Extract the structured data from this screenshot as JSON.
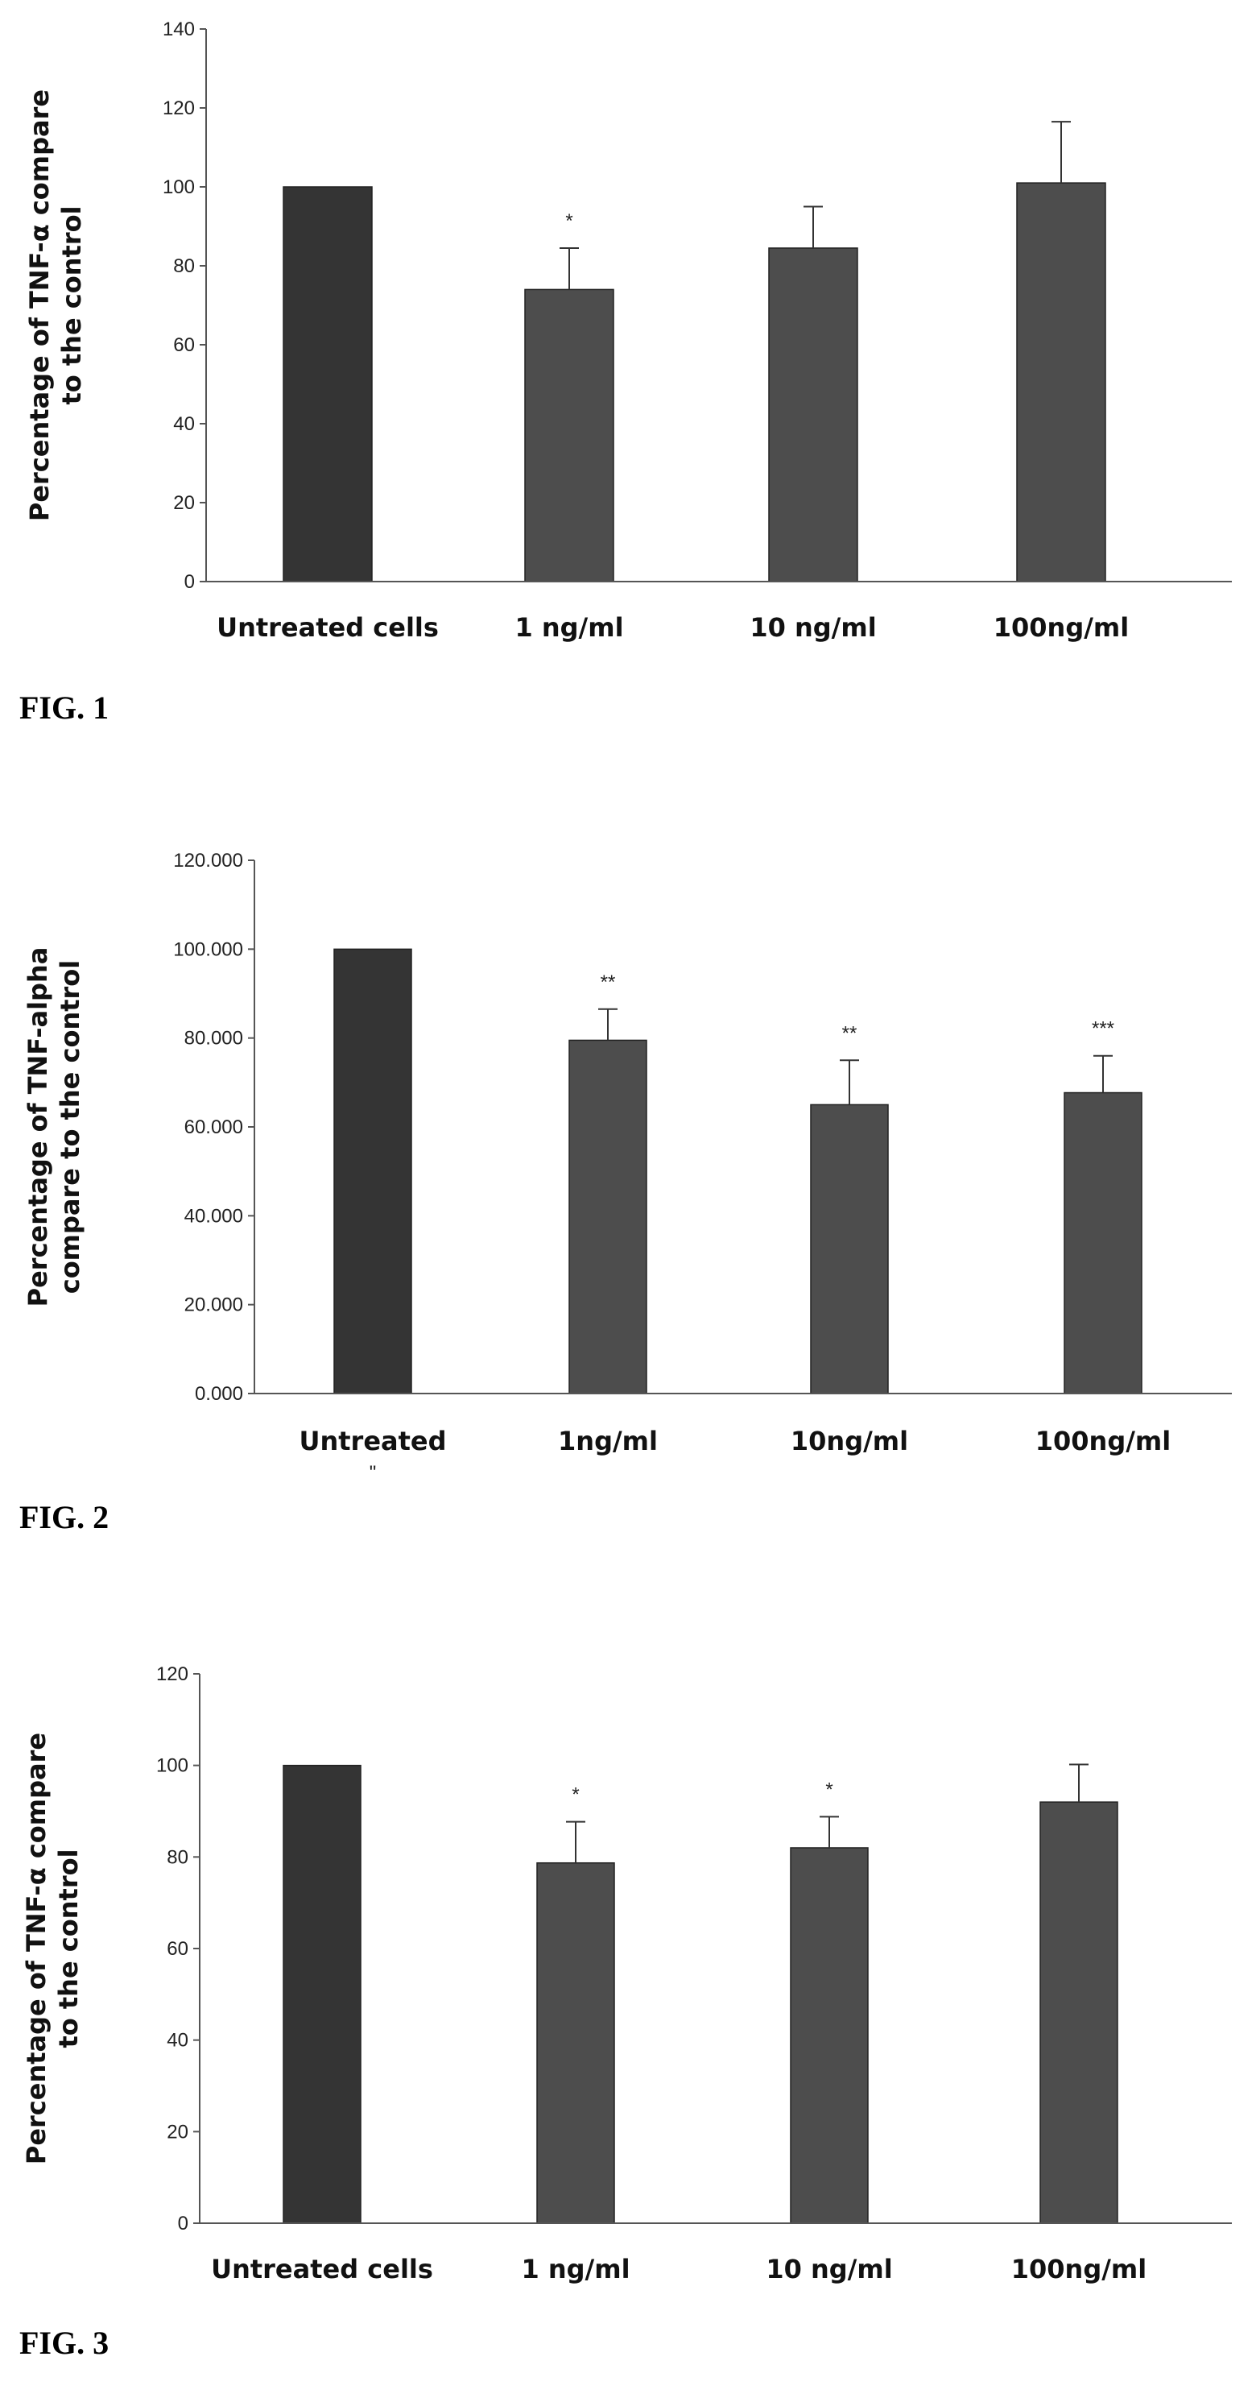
{
  "chart_data": [
    {
      "type": "bar",
      "figure_label": "FIG. 1",
      "ylabel_lines": [
        "Percentage of TNF-α compare",
        "to the control"
      ],
      "categories": [
        "Untreated cells",
        "1 ng/ml",
        "10 ng/ml",
        "100ng/ml"
      ],
      "values": [
        100,
        74,
        84.5,
        101
      ],
      "error": [
        0,
        10.5,
        10.5,
        15.5
      ],
      "significance": [
        "",
        "*",
        "",
        ""
      ],
      "ylim": [
        0,
        140
      ],
      "yticks": [
        "0",
        "20",
        "40",
        "60",
        "80",
        "100",
        "120",
        "140"
      ],
      "colors": {
        "bar": "#4d4d4d",
        "first_bar": "#343434"
      }
    },
    {
      "type": "bar",
      "figure_label": "FIG. 2",
      "ylabel_lines": [
        "Percentage of TNF-alpha",
        "compare to the control"
      ],
      "categories": [
        "Untreated",
        "1ng/ml",
        "10ng/ml",
        "100ng/ml"
      ],
      "category_sublabel": [
        "\"",
        "",
        "",
        ""
      ],
      "values": [
        100,
        79.5,
        65,
        67.7
      ],
      "error": [
        0,
        7,
        10,
        8.3
      ],
      "significance": [
        "",
        "**",
        "**",
        "***"
      ],
      "ylim": [
        0,
        120
      ],
      "yticks": [
        "0.000",
        "20.000",
        "40.000",
        "60.000",
        "80.000",
        "100.000",
        "120.000"
      ],
      "colors": {
        "bar": "#4d4d4d",
        "first_bar": "#343434"
      }
    },
    {
      "type": "bar",
      "figure_label": "FIG. 3",
      "ylabel_lines": [
        "Percentage of TNF-α compare",
        "to the control"
      ],
      "categories": [
        "Untreated cells",
        "1 ng/ml",
        "10 ng/ml",
        "100ng/ml"
      ],
      "values": [
        100,
        78.7,
        82,
        92
      ],
      "error": [
        0,
        9,
        6.8,
        8.2
      ],
      "significance": [
        "",
        "*",
        "*",
        ""
      ],
      "ylim": [
        0,
        120
      ],
      "yticks": [
        "0",
        "20",
        "40",
        "60",
        "80",
        "100",
        "120"
      ],
      "colors": {
        "bar": "#4d4d4d",
        "first_bar": "#343434"
      }
    }
  ]
}
